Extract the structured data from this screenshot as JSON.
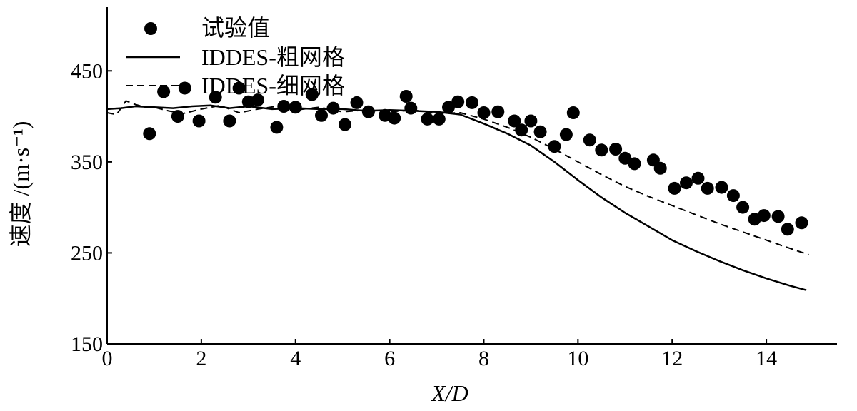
{
  "chart_data": {
    "type": "line",
    "title": "",
    "xlabel": "X/D",
    "ylabel": "速度 /(m·s⁻¹)",
    "xlim": [
      0,
      15.5
    ],
    "ylim": [
      150,
      520
    ],
    "xticks": [
      0,
      2,
      4,
      6,
      8,
      10,
      12,
      14
    ],
    "yticks": [
      150,
      250,
      350,
      450
    ],
    "grid": false,
    "legend_position": "top-left",
    "series": [
      {
        "name": "试验值",
        "kind": "scatter",
        "color": "#000000",
        "x": [
          0.9,
          1.2,
          1.5,
          1.65,
          1.95,
          2.3,
          2.6,
          2.8,
          3.0,
          3.2,
          3.6,
          3.75,
          4.0,
          4.35,
          4.55,
          4.8,
          5.05,
          5.3,
          5.55,
          5.9,
          6.1,
          6.35,
          6.45,
          6.8,
          7.05,
          7.25,
          7.45,
          7.75,
          8.0,
          8.3,
          8.65,
          8.8,
          9.0,
          9.2,
          9.5,
          9.75,
          9.9,
          10.25,
          10.5,
          10.8,
          11.0,
          11.2,
          11.6,
          11.75,
          12.05,
          12.3,
          12.55,
          12.75,
          13.05,
          13.3,
          13.5,
          13.75,
          13.95,
          14.25,
          14.45,
          14.75
        ],
        "y": [
          381,
          427,
          400,
          431,
          395,
          421,
          395,
          431,
          416,
          418,
          388,
          411,
          410,
          424,
          401,
          409,
          391,
          415,
          405,
          401,
          398,
          422,
          409,
          397,
          397,
          410,
          416,
          415,
          404,
          405,
          395,
          385,
          395,
          383,
          367,
          380,
          404,
          374,
          363,
          364,
          354,
          348,
          352,
          343,
          321,
          327,
          332,
          321,
          322,
          313,
          300,
          287,
          291,
          290,
          276,
          283
        ]
      },
      {
        "name": "IDDES-粗网格",
        "kind": "line",
        "dash": "solid",
        "color": "#000000",
        "x": [
          0,
          0.3,
          0.6,
          1.0,
          1.4,
          1.8,
          2.2,
          2.6,
          3.0,
          3.5,
          4.0,
          4.5,
          5.0,
          5.5,
          6.0,
          6.5,
          7.0,
          7.5,
          8.0,
          8.5,
          9.0,
          9.5,
          10.0,
          10.5,
          11.0,
          11.5,
          12.0,
          12.5,
          13.0,
          13.5,
          14.0,
          14.5,
          14.85
        ],
        "y": [
          408,
          409,
          411,
          410,
          409,
          411,
          412,
          409,
          411,
          408,
          409,
          408,
          408,
          406,
          407,
          406,
          405,
          402,
          392,
          381,
          368,
          350,
          330,
          311,
          294,
          279,
          264,
          252,
          241,
          231,
          222,
          214,
          209
        ]
      },
      {
        "name": "IDDES-细网格",
        "kind": "line",
        "dash": "dashed",
        "color": "#000000",
        "x": [
          0,
          0.2,
          0.4,
          0.6,
          0.8,
          1.0,
          1.3,
          1.6,
          2.0,
          2.4,
          2.8,
          3.2,
          3.6,
          4.0,
          4.5,
          5.0,
          5.5,
          6.0,
          6.5,
          7.0,
          7.5,
          8.0,
          8.5,
          9.0,
          9.5,
          10.0,
          10.5,
          11.0,
          11.5,
          12.0,
          12.5,
          13.0,
          13.5,
          14.0,
          14.5,
          14.9
        ],
        "y": [
          404,
          402,
          417,
          413,
          410,
          410,
          406,
          403,
          408,
          412,
          404,
          408,
          411,
          407,
          410,
          405,
          407,
          405,
          407,
          403,
          404,
          397,
          388,
          377,
          364,
          350,
          336,
          323,
          312,
          302,
          292,
          282,
          273,
          264,
          255,
          248
        ]
      }
    ]
  }
}
